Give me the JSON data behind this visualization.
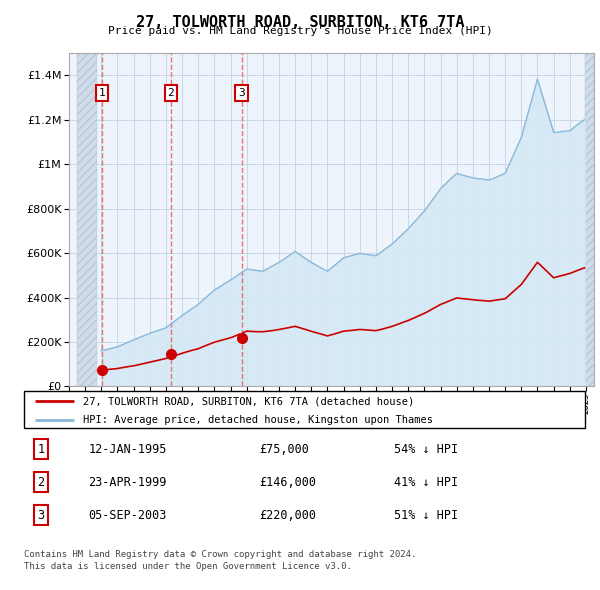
{
  "title": "27, TOLWORTH ROAD, SURBITON, KT6 7TA",
  "subtitle": "Price paid vs. HM Land Registry's House Price Index (HPI)",
  "legend_line1": "27, TOLWORTH ROAD, SURBITON, KT6 7TA (detached house)",
  "legend_line2": "HPI: Average price, detached house, Kingston upon Thames",
  "footnote1": "Contains HM Land Registry data © Crown copyright and database right 2024.",
  "footnote2": "This data is licensed under the Open Government Licence v3.0.",
  "transactions": [
    {
      "num": 1,
      "date": "12-JAN-1995",
      "price": 75000,
      "pct": "54% ↓ HPI",
      "x": 1995.04
    },
    {
      "num": 2,
      "date": "23-APR-1999",
      "price": 146000,
      "pct": "41% ↓ HPI",
      "x": 1999.31
    },
    {
      "num": 3,
      "date": "05-SEP-2003",
      "price": 220000,
      "pct": "51% ↓ HPI",
      "x": 2003.68
    }
  ],
  "hpi_color": "#89b8d8",
  "price_color": "#cc0000",
  "vline_color": "#e06060",
  "ylim": [
    0,
    1500000
  ],
  "xlim_start": 1993.5,
  "xlim_end": 2025.5,
  "hatch_end": 1994.75
}
